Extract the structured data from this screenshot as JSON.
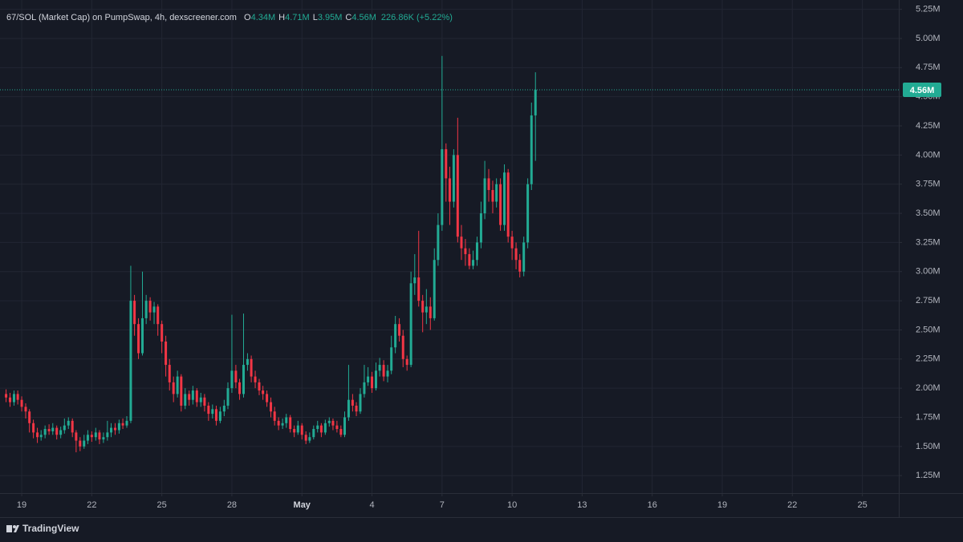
{
  "chart_data": {
    "type": "candlestick",
    "title": "67/SOL (Market Cap) on PumpSwap, 4h, dexscreener.com",
    "ohlc_header": [
      {
        "key": "O",
        "value": "4.34M"
      },
      {
        "key": "H",
        "value": "4.71M"
      },
      {
        "key": "L",
        "value": "3.95M"
      },
      {
        "key": "C",
        "value": "4.56M"
      }
    ],
    "change": "226.86K (+5.22%)",
    "x": [
      18.33,
      18.5,
      18.67,
      18.83,
      19,
      19.17,
      19.33,
      19.5,
      19.67,
      19.83,
      20,
      20.17,
      20.33,
      20.5,
      20.67,
      20.83,
      21,
      21.17,
      21.33,
      21.5,
      21.67,
      21.83,
      22,
      22.17,
      22.33,
      22.5,
      22.67,
      22.83,
      23,
      23.17,
      23.33,
      23.5,
      23.67,
      23.83,
      24,
      24.17,
      24.33,
      24.5,
      24.67,
      24.83,
      25,
      25.17,
      25.33,
      25.5,
      25.67,
      25.83,
      26,
      26.17,
      26.33,
      26.5,
      26.67,
      26.83,
      27,
      27.17,
      27.33,
      27.5,
      27.67,
      27.83,
      28,
      28.17,
      28.33,
      28.5,
      28.67,
      28.83,
      29,
      29.17,
      29.33,
      29.5,
      29.67,
      29.83,
      30,
      30.17,
      30.33,
      30.5,
      30.67,
      30.83,
      31,
      31.17,
      31.33,
      31.5,
      31.67,
      31.83,
      32,
      32.17,
      32.33,
      32.5,
      32.67,
      32.83,
      33,
      33.17,
      33.33,
      33.5,
      33.67,
      33.83,
      34,
      34.17,
      34.33,
      34.5,
      34.67,
      34.83,
      35,
      35.17,
      35.33,
      35.5,
      35.67,
      35.83,
      36,
      36.17,
      36.33,
      36.5,
      36.67,
      36.83,
      37,
      37.17,
      37.33,
      37.5,
      37.67,
      37.83,
      38,
      38.17,
      38.33,
      38.5,
      38.67,
      38.83,
      39,
      39.17,
      39.33,
      39.5,
      39.67,
      39.83,
      40,
      40.17,
      40.33,
      40.5,
      40.67,
      40.83,
      41
    ],
    "open": [
      1.95,
      1.92,
      1.88,
      1.95,
      1.9,
      1.84,
      1.8,
      1.7,
      1.62,
      1.58,
      1.6,
      1.65,
      1.63,
      1.66,
      1.6,
      1.64,
      1.68,
      1.72,
      1.62,
      1.55,
      1.5,
      1.55,
      1.6,
      1.58,
      1.62,
      1.56,
      1.58,
      1.62,
      1.66,
      1.64,
      1.7,
      1.68,
      1.72,
      2.75,
      2.55,
      2.3,
      2.6,
      2.75,
      2.65,
      2.7,
      2.55,
      2.4,
      2.2,
      2.05,
      1.95,
      2.1,
      1.85,
      1.95,
      1.9,
      1.98,
      1.88,
      1.92,
      1.85,
      1.78,
      1.82,
      1.72,
      1.8,
      1.85,
      2.0,
      2.15,
      2.05,
      1.95,
      2.2,
      2.25,
      2.1,
      2.05,
      1.98,
      1.95,
      1.88,
      1.8,
      1.72,
      1.68,
      1.7,
      1.75,
      1.65,
      1.62,
      1.68,
      1.6,
      1.55,
      1.58,
      1.65,
      1.68,
      1.62,
      1.7,
      1.72,
      1.68,
      1.65,
      1.6,
      1.75,
      1.9,
      1.85,
      1.8,
      1.95,
      2.05,
      2.1,
      2.0,
      2.15,
      2.2,
      2.1,
      2.15,
      2.35,
      2.55,
      2.45,
      2.25,
      2.2,
      2.9,
      2.95,
      2.75,
      2.65,
      2.7,
      2.6,
      3.1,
      3.4,
      4.05,
      3.8,
      3.6,
      4.0,
      3.3,
      3.2,
      3.15,
      3.05,
      3.1,
      3.25,
      3.5,
      3.8,
      3.7,
      3.6,
      3.75,
      3.4,
      3.85,
      3.3,
      3.2,
      3.1,
      3.0,
      3.25,
      3.75,
      4.34
    ],
    "high": [
      1.99,
      1.96,
      1.98,
      1.98,
      1.93,
      1.87,
      1.82,
      1.73,
      1.66,
      1.64,
      1.68,
      1.69,
      1.7,
      1.68,
      1.67,
      1.74,
      1.75,
      1.74,
      1.64,
      1.58,
      1.6,
      1.64,
      1.63,
      1.66,
      1.64,
      1.62,
      1.72,
      1.7,
      1.7,
      1.73,
      1.74,
      1.76,
      3.05,
      2.8,
      2.6,
      3.0,
      2.8,
      2.78,
      2.74,
      2.72,
      2.58,
      2.45,
      2.25,
      2.1,
      2.15,
      2.12,
      2.0,
      1.98,
      2.02,
      2.0,
      1.96,
      1.95,
      1.88,
      1.86,
      1.85,
      1.84,
      1.9,
      2.05,
      2.63,
      2.2,
      2.08,
      2.64,
      2.3,
      2.28,
      2.15,
      2.08,
      2.02,
      1.98,
      1.92,
      1.84,
      1.75,
      1.74,
      1.78,
      1.77,
      1.68,
      1.72,
      1.7,
      1.63,
      1.62,
      1.68,
      1.72,
      1.7,
      1.73,
      1.75,
      1.74,
      1.72,
      1.68,
      1.8,
      2.2,
      1.95,
      1.88,
      2.0,
      2.2,
      2.18,
      2.14,
      2.22,
      2.26,
      2.24,
      2.2,
      2.45,
      2.62,
      2.6,
      2.5,
      2.28,
      3.0,
      3.15,
      3.35,
      2.8,
      2.85,
      2.78,
      3.2,
      3.5,
      4.85,
      4.1,
      3.9,
      4.05,
      4.32,
      3.4,
      3.28,
      3.2,
      3.18,
      3.3,
      3.6,
      3.95,
      3.88,
      3.78,
      3.8,
      3.8,
      3.92,
      3.88,
      3.35,
      3.25,
      3.15,
      3.3,
      3.8,
      4.45,
      4.71
    ],
    "low": [
      1.88,
      1.84,
      1.85,
      1.86,
      1.8,
      1.74,
      1.62,
      1.57,
      1.53,
      1.55,
      1.57,
      1.6,
      1.6,
      1.56,
      1.57,
      1.61,
      1.65,
      1.58,
      1.45,
      1.46,
      1.48,
      1.52,
      1.54,
      1.55,
      1.52,
      1.53,
      1.55,
      1.58,
      1.6,
      1.61,
      1.65,
      1.66,
      1.7,
      2.45,
      2.25,
      2.28,
      2.55,
      2.58,
      2.55,
      2.45,
      2.3,
      2.1,
      1.98,
      1.88,
      1.92,
      1.8,
      1.82,
      1.85,
      1.86,
      1.84,
      1.84,
      1.8,
      1.72,
      1.74,
      1.68,
      1.7,
      1.76,
      1.82,
      1.96,
      2.0,
      1.9,
      1.92,
      2.15,
      2.05,
      2.0,
      1.94,
      1.9,
      1.84,
      1.75,
      1.68,
      1.64,
      1.65,
      1.66,
      1.62,
      1.58,
      1.6,
      1.56,
      1.52,
      1.53,
      1.56,
      1.62,
      1.58,
      1.6,
      1.67,
      1.64,
      1.62,
      1.58,
      1.58,
      1.72,
      1.8,
      1.76,
      1.78,
      1.92,
      2.02,
      1.96,
      1.98,
      2.1,
      2.06,
      2.05,
      2.12,
      2.3,
      2.4,
      2.18,
      2.15,
      2.18,
      2.8,
      2.7,
      2.48,
      2.55,
      2.5,
      2.58,
      3.05,
      3.35,
      3.6,
      3.4,
      3.55,
      3.25,
      3.1,
      3.05,
      3.02,
      3.02,
      3.05,
      3.2,
      3.45,
      3.6,
      3.5,
      3.55,
      3.35,
      3.35,
      3.25,
      3.1,
      3.02,
      2.95,
      2.96,
      3.2,
      3.7,
      3.95
    ],
    "close": [
      1.92,
      1.88,
      1.95,
      1.9,
      1.84,
      1.8,
      1.7,
      1.62,
      1.58,
      1.6,
      1.65,
      1.63,
      1.66,
      1.6,
      1.64,
      1.68,
      1.72,
      1.62,
      1.55,
      1.5,
      1.55,
      1.6,
      1.58,
      1.62,
      1.56,
      1.58,
      1.62,
      1.66,
      1.64,
      1.7,
      1.68,
      1.72,
      2.75,
      2.55,
      2.3,
      2.6,
      2.75,
      2.65,
      2.7,
      2.55,
      2.4,
      2.2,
      2.05,
      1.95,
      2.1,
      1.85,
      1.95,
      1.9,
      1.98,
      1.88,
      1.92,
      1.85,
      1.78,
      1.82,
      1.72,
      1.8,
      1.85,
      2.0,
      2.15,
      2.05,
      1.95,
      2.2,
      2.25,
      2.1,
      2.05,
      1.98,
      1.95,
      1.88,
      1.8,
      1.72,
      1.68,
      1.7,
      1.75,
      1.65,
      1.62,
      1.68,
      1.6,
      1.55,
      1.58,
      1.65,
      1.68,
      1.62,
      1.7,
      1.72,
      1.68,
      1.65,
      1.6,
      1.75,
      1.9,
      1.85,
      1.8,
      1.95,
      2.05,
      2.1,
      2.0,
      2.15,
      2.2,
      2.1,
      2.15,
      2.35,
      2.55,
      2.45,
      2.25,
      2.2,
      2.9,
      2.95,
      2.75,
      2.65,
      2.7,
      2.6,
      3.1,
      3.4,
      4.05,
      3.8,
      3.6,
      4.0,
      3.3,
      3.2,
      3.15,
      3.05,
      3.1,
      3.25,
      3.5,
      3.8,
      3.7,
      3.6,
      3.75,
      3.4,
      3.85,
      3.3,
      3.2,
      3.1,
      3.0,
      3.25,
      3.75,
      4.34,
      4.56
    ],
    "up_color": "#22ab94",
    "down_color": "#f23645",
    "xlim": [
      18.07,
      56.56
    ],
    "ylim": [
      1.1,
      5.33
    ],
    "xticks": [
      19,
      22,
      25,
      28,
      {
        "value": 31,
        "label": "May"
      },
      {
        "value": 34,
        "label": "4"
      },
      {
        "value": 37,
        "label": "7"
      },
      {
        "value": 40,
        "label": "10"
      },
      {
        "value": 43,
        "label": "13"
      },
      {
        "value": 46,
        "label": "16"
      },
      {
        "value": 49,
        "label": "19"
      },
      {
        "value": 52,
        "label": "22"
      },
      {
        "value": 55,
        "label": "25"
      }
    ],
    "yticks": [
      {
        "value": 1.25,
        "label": "1.25M"
      },
      {
        "value": 1.5,
        "label": "1.50M"
      },
      {
        "value": 1.75,
        "label": "1.75M"
      },
      {
        "value": 2,
        "label": "2.00M"
      },
      {
        "value": 2.25,
        "label": "2.25M"
      },
      {
        "value": 2.5,
        "label": "2.50M"
      },
      {
        "value": 2.75,
        "label": "2.75M"
      },
      {
        "value": 3,
        "label": "3.00M"
      },
      {
        "value": 3.25,
        "label": "3.25M"
      },
      {
        "value": 3.5,
        "label": "3.50M"
      },
      {
        "value": 3.75,
        "label": "3.75M"
      },
      {
        "value": 4,
        "label": "4.00M"
      },
      {
        "value": 4.25,
        "label": "4.25M"
      },
      {
        "value": 4.5,
        "label": "4.50M"
      },
      {
        "value": 4.75,
        "label": "4.75M"
      },
      {
        "value": 5,
        "label": "5.00M"
      },
      {
        "value": 5.25,
        "label": "5.25M"
      }
    ],
    "grid": true,
    "last_price": {
      "value": 4.56,
      "label": "4.56M"
    }
  },
  "footer": "TradingView"
}
